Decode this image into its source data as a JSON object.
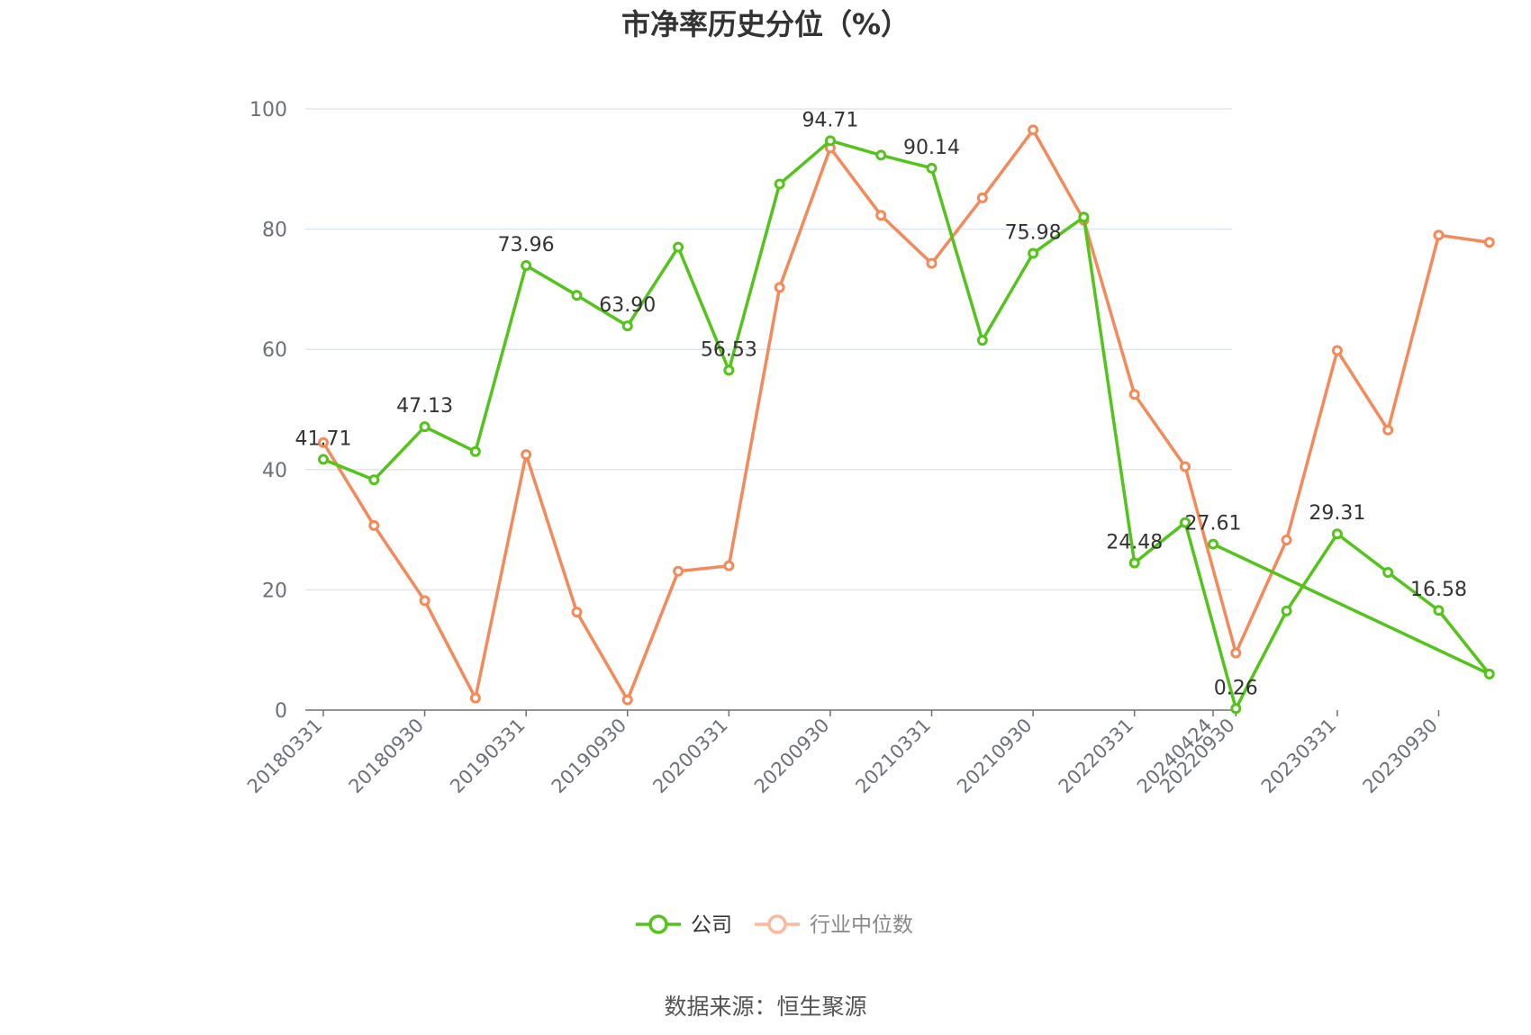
{
  "chart_data": {
    "type": "line",
    "title": "市净率历史分位（%）",
    "source": "数据来源：恒生聚源",
    "ylim": [
      0,
      100
    ],
    "yticks": [
      "0",
      "20",
      "40",
      "60",
      "80",
      "100"
    ],
    "xticks": [
      "20180331",
      "20180930",
      "20190331",
      "20190930",
      "20200331",
      "20200930",
      "20210331",
      "20210930",
      "20220331",
      "20220930",
      "20230331",
      "20230930",
      "20240424"
    ],
    "x": [
      "20180331",
      "20180630",
      "20180930",
      "20181231",
      "20190331",
      "20190630",
      "20190930",
      "20191231",
      "20200331",
      "20200630",
      "20200930",
      "20201231",
      "20210331",
      "20210630",
      "20210930",
      "20211231",
      "20220331",
      "20220630",
      "20220930",
      "20221231",
      "20230331",
      "20230630",
      "20230930",
      "20231231",
      "20240424"
    ],
    "grid": true,
    "legend_position": "bottom-center",
    "series": [
      {
        "name": "公司",
        "color": "#52c41a",
        "values": [
          41.71,
          38.3,
          47.13,
          43.0,
          73.96,
          69.0,
          63.9,
          77.0,
          56.53,
          87.5,
          94.71,
          92.3,
          90.14,
          61.5,
          75.98,
          82.0,
          24.48,
          31.2,
          0.26,
          16.5,
          29.31,
          22.9,
          16.58,
          6.0,
          27.61
        ],
        "labels": [
          "41.71",
          "",
          "47.13",
          "",
          "73.96",
          "",
          "63.90",
          "",
          "56.53",
          "",
          "94.71",
          "",
          "90.14",
          "",
          "75.98",
          "",
          "24.48",
          "",
          "0.26",
          "",
          "29.31",
          "",
          "16.58",
          "",
          "27.61"
        ]
      },
      {
        "name": "行业中位数",
        "color": "#f4895a",
        "values": [
          44.5,
          30.7,
          18.2,
          2.0,
          42.5,
          16.3,
          1.7,
          23.1,
          24.0,
          70.3,
          93.5,
          82.3,
          74.3,
          85.2,
          96.5,
          81.5,
          52.5,
          40.5,
          9.5,
          28.3,
          59.8,
          46.6,
          79.0,
          77.8,
          null
        ],
        "labels": []
      }
    ]
  }
}
